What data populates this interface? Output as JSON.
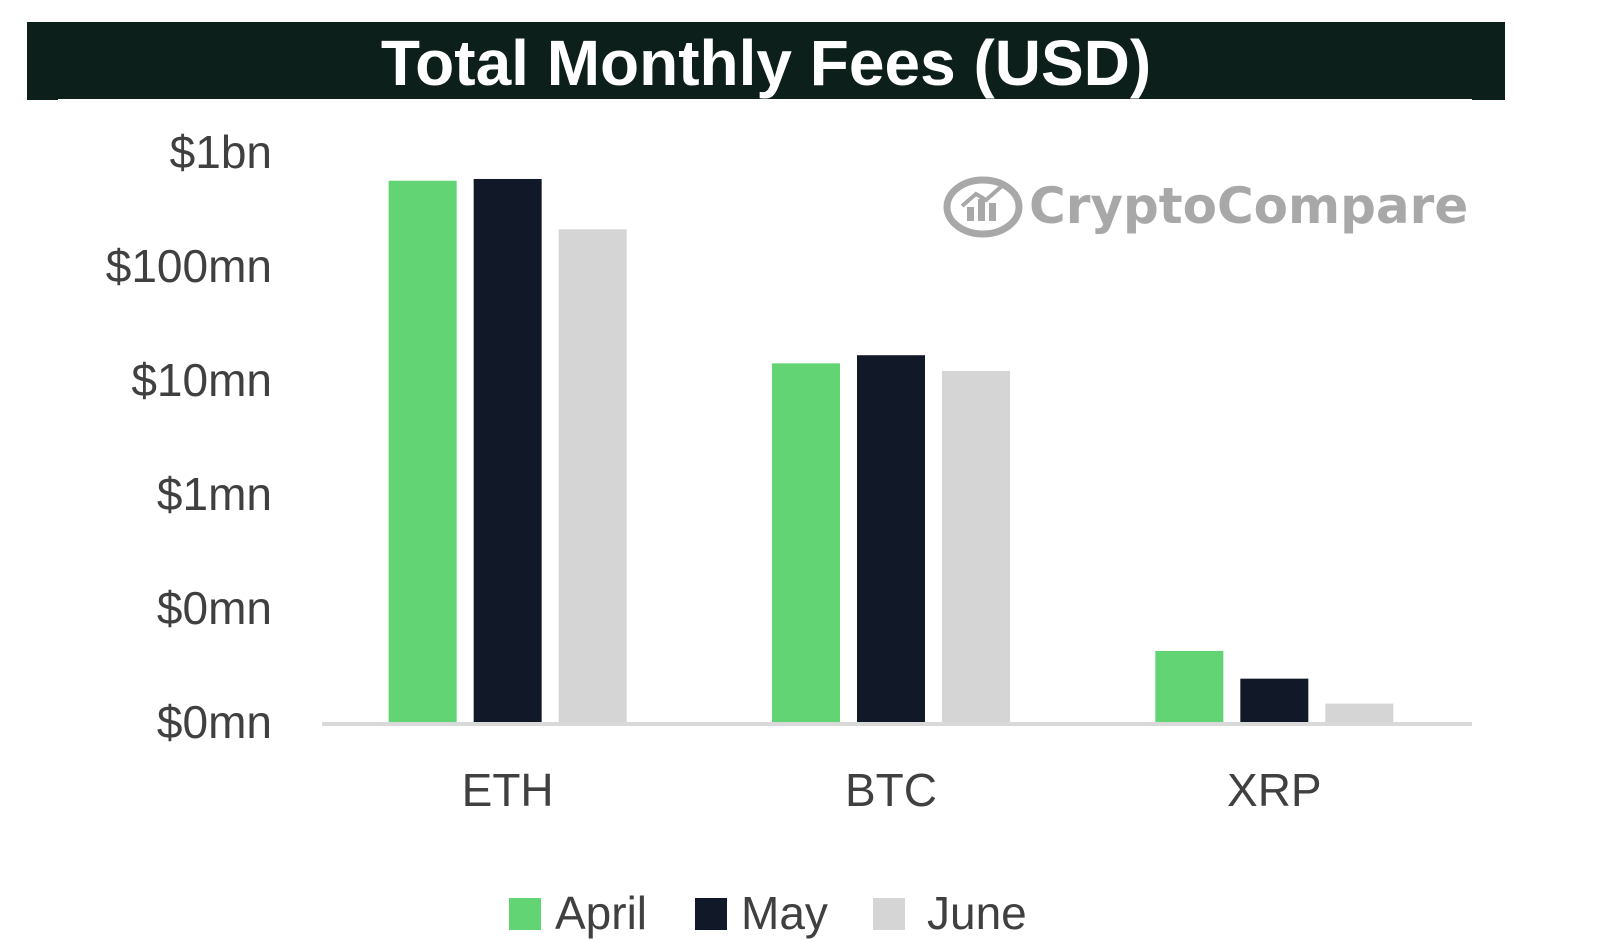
{
  "chart_data": {
    "type": "bar",
    "title": "Total Monthly Fees (USD)",
    "y_scale": "log",
    "ylim": [
      10000,
      1000000000
    ],
    "y_tick_values": [
      10000,
      100000,
      1000000,
      10000000,
      100000000,
      1000000000
    ],
    "y_tick_labels": [
      "$0mn",
      "$0mn",
      "$1mn",
      "$10mn",
      "$100mn",
      "$1bn"
    ],
    "categories": [
      "ETH",
      "BTC",
      "XRP"
    ],
    "series": [
      {
        "name": "April",
        "color": "#62d474",
        "values": [
          560000000,
          14000000,
          42000
        ]
      },
      {
        "name": "May",
        "color": "#111827",
        "values": [
          580000000,
          16500000,
          24000
        ]
      },
      {
        "name": "June",
        "color": "#d5d5d5",
        "values": [
          210000000,
          12000000,
          14500
        ]
      }
    ],
    "legend_position": "bottom",
    "grid": false,
    "watermark": "CryptoCompare"
  },
  "colors": {
    "title_bar": "#0c1f1a",
    "title_text": "#ffffff",
    "axis_text": "#404040",
    "axis_line": "#d9d9d9",
    "watermark": "#9a9a9a"
  }
}
